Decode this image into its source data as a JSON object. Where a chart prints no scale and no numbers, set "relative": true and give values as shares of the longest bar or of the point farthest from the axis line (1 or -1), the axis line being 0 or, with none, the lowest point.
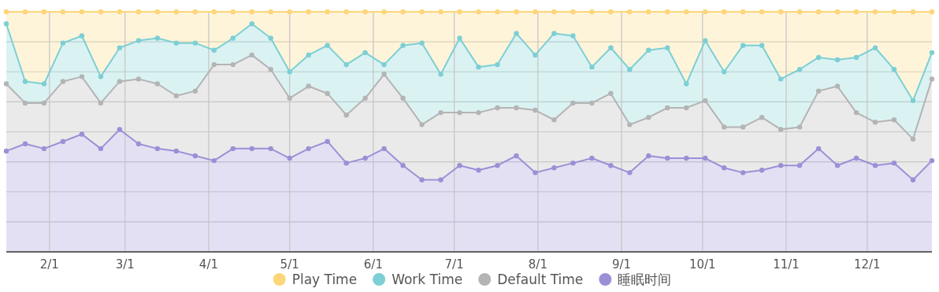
{
  "chart_data": {
    "type": "area",
    "stacked": true,
    "relative": true,
    "grid": true,
    "legend": "bottom",
    "marker": "circle",
    "x": [
      "--01-16",
      "--01-23",
      "--01-30",
      "--02-06",
      "--02-13",
      "--02-20",
      "--02-27",
      "--03-06",
      "--03-13",
      "--03-20",
      "--03-27",
      "--04-03",
      "--04-10",
      "--04-17",
      "--04-24",
      "--05-01",
      "--05-08",
      "--05-15",
      "--05-22",
      "--05-29",
      "--06-05",
      "--06-12",
      "--06-19",
      "--06-26",
      "--07-03",
      "--07-10",
      "--07-17",
      "--07-24",
      "--07-31",
      "--08-07",
      "--08-14",
      "--08-21",
      "--08-28",
      "--09-04",
      "--09-11",
      "--09-18",
      "--09-25",
      "--10-02",
      "--10-09",
      "--10-16",
      "--10-23",
      "--10-30",
      "--11-06",
      "--11-13",
      "--11-20",
      "--11-27",
      "--12-04",
      "--12-11",
      "--12-18",
      "--12-25"
    ],
    "xlim": [
      "--01-16",
      "--12-25"
    ],
    "xticks": [
      {
        "value": "--02-01",
        "label": "2/1"
      },
      {
        "value": "--03-01",
        "label": "3/1"
      },
      {
        "value": "--04-01",
        "label": "4/1"
      },
      {
        "value": "--05-01",
        "label": "5/1"
      },
      {
        "value": "--06-01",
        "label": "6/1"
      },
      {
        "value": "--07-01",
        "label": "7/1"
      },
      {
        "value": "--08-01",
        "label": "8/1"
      },
      {
        "value": "--09-01",
        "label": "9/1"
      },
      {
        "value": "--10-01",
        "label": "10/1"
      },
      {
        "value": "--11-01",
        "label": "11/1"
      },
      {
        "value": "--12-01",
        "label": "12/1"
      }
    ],
    "series": [
      {
        "name": "睡眠时间",
        "color": "#9d8fd6",
        "values": [
          0.42,
          0.45,
          0.43,
          0.46,
          0.49,
          0.43,
          0.51,
          0.45,
          0.43,
          0.42,
          0.4,
          0.38,
          0.43,
          0.43,
          0.43,
          0.39,
          0.43,
          0.46,
          0.37,
          0.39,
          0.43,
          0.36,
          0.3,
          0.3,
          0.36,
          0.34,
          0.36,
          0.4,
          0.33,
          0.35,
          0.37,
          0.39,
          0.36,
          0.33,
          0.4,
          0.39,
          0.39,
          0.39,
          0.35,
          0.33,
          0.34,
          0.36,
          0.36,
          0.43,
          0.36,
          0.39,
          0.36,
          0.37,
          0.3,
          0.38
        ]
      },
      {
        "name": "Default Time",
        "color": "#b4b4b4",
        "values": [
          0.28,
          0.17,
          0.19,
          0.25,
          0.24,
          0.19,
          0.2,
          0.27,
          0.27,
          0.23,
          0.27,
          0.4,
          0.35,
          0.39,
          0.33,
          0.25,
          0.26,
          0.2,
          0.2,
          0.25,
          0.31,
          0.28,
          0.23,
          0.28,
          0.22,
          0.24,
          0.24,
          0.2,
          0.26,
          0.2,
          0.25,
          0.23,
          0.3,
          0.2,
          0.16,
          0.21,
          0.21,
          0.24,
          0.17,
          0.19,
          0.22,
          0.15,
          0.16,
          0.24,
          0.33,
          0.19,
          0.18,
          0.18,
          0.17,
          0.34
        ]
      },
      {
        "name": "Work Time",
        "color": "#7ccfd4",
        "values": [
          0.25,
          0.09,
          0.08,
          0.16,
          0.17,
          0.11,
          0.14,
          0.16,
          0.19,
          0.22,
          0.2,
          0.06,
          0.11,
          0.13,
          0.13,
          0.11,
          0.13,
          0.2,
          0.21,
          0.19,
          0.04,
          0.22,
          0.34,
          0.16,
          0.31,
          0.19,
          0.18,
          0.31,
          0.23,
          0.36,
          0.28,
          0.15,
          0.19,
          0.23,
          0.28,
          0.25,
          0.1,
          0.25,
          0.23,
          0.34,
          0.3,
          0.21,
          0.24,
          0.14,
          0.11,
          0.23,
          0.31,
          0.21,
          0.16,
          0.11
        ]
      },
      {
        "name": "Play Time",
        "color": "#fdd67a",
        "values": [
          0.05,
          0.29,
          0.3,
          0.13,
          0.1,
          0.27,
          0.15,
          0.12,
          0.11,
          0.13,
          0.13,
          0.16,
          0.11,
          0.05,
          0.11,
          0.25,
          0.18,
          0.14,
          0.22,
          0.17,
          0.22,
          0.14,
          0.13,
          0.26,
          0.11,
          0.23,
          0.22,
          0.09,
          0.18,
          0.09,
          0.1,
          0.23,
          0.15,
          0.24,
          0.16,
          0.15,
          0.3,
          0.12,
          0.25,
          0.14,
          0.14,
          0.28,
          0.24,
          0.19,
          0.2,
          0.19,
          0.15,
          0.24,
          0.37,
          0.17
        ]
      }
    ]
  }
}
